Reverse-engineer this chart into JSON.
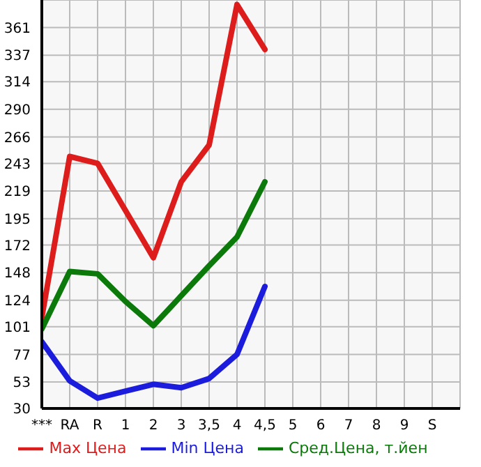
{
  "chart_data": {
    "type": "line",
    "categories": [
      "***",
      "RA",
      "R",
      "1",
      "2",
      "3",
      "3,5",
      "4",
      "4,5",
      "5",
      "6",
      "7",
      "8",
      "9",
      "S"
    ],
    "series": [
      {
        "name": "Max Цена",
        "color": "#dd1c1c",
        "values": [
          109,
          249,
          243,
          202,
          161,
          227,
          259,
          381,
          342,
          null,
          null,
          null,
          null,
          null,
          null
        ]
      },
      {
        "name": "Min Цена",
        "color": "#1c1cdd",
        "values": [
          88,
          54,
          39,
          45,
          51,
          48,
          56,
          77,
          136,
          null,
          null,
          null,
          null,
          null,
          null
        ]
      },
      {
        "name": "Сред.Цена, т.йен",
        "color": "#0b7a0b",
        "values": [
          99,
          149,
          147,
          123,
          102,
          128,
          154,
          179,
          227,
          null,
          null,
          null,
          null,
          null,
          null
        ]
      }
    ],
    "ylim": [
      30,
      385
    ],
    "yticks": [
      30,
      53,
      77,
      101,
      124,
      148,
      172,
      195,
      219,
      243,
      266,
      290,
      314,
      337,
      361
    ],
    "grid": true,
    "legend": "bottom",
    "marker": "none",
    "line_style": "solid"
  }
}
